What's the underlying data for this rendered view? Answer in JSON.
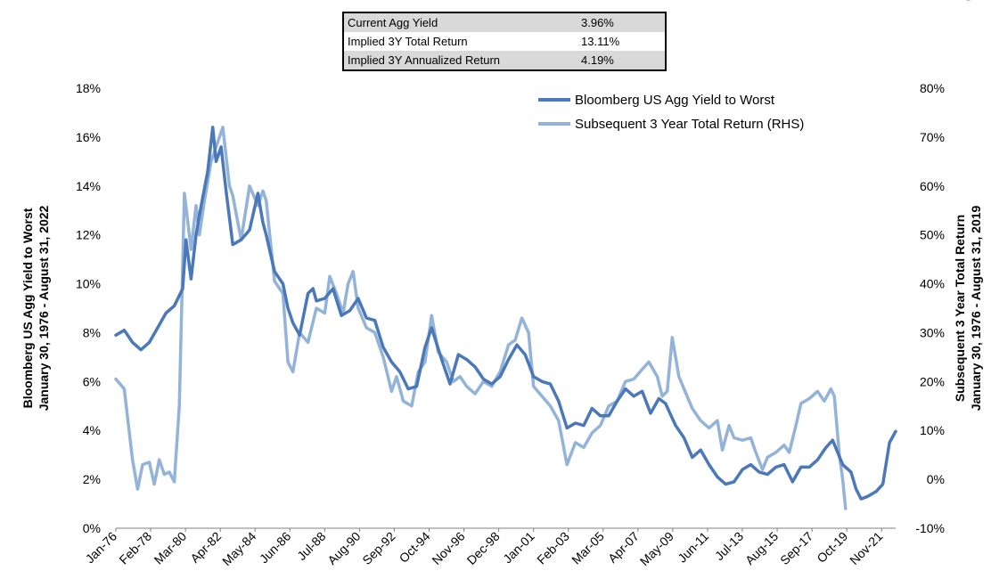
{
  "stats_table": [
    {
      "label": "Current Agg Yield",
      "value": "3.96%"
    },
    {
      "label": "Implied 3Y Total Return",
      "value": "13.11%"
    },
    {
      "label": "Implied 3Y Annualized Return",
      "value": "4.19%"
    }
  ],
  "corner_mark": "\"",
  "chart_data": {
    "type": "line",
    "title": "",
    "ylabel_left": [
      "Bloomberg US Agg Yield to Worst",
      "January 30, 1976 - August 31, 2022"
    ],
    "ylabel_right": [
      "Subsequent 3 Year Total Return",
      "January 30, 1976 - August 31, 2019"
    ],
    "xlabel": "",
    "x_ticks": [
      "Jan-76",
      "Feb-78",
      "Mar-80",
      "Apr-82",
      "May-84",
      "Jun-86",
      "Jul-88",
      "Aug-90",
      "Sep-92",
      "Oct-94",
      "Nov-96",
      "Dec-98",
      "Jan-01",
      "Feb-03",
      "Mar-05",
      "Apr-07",
      "May-09",
      "Jun-11",
      "Jul-13",
      "Aug-15",
      "Sep-17",
      "Oct-19",
      "Nov-21"
    ],
    "ylim_left": [
      0,
      18
    ],
    "ylim_right": [
      -10,
      80
    ],
    "y_ticks_left": [
      "0%",
      "2%",
      "4%",
      "6%",
      "8%",
      "10%",
      "12%",
      "14%",
      "16%",
      "18%"
    ],
    "y_ticks_right": [
      "-10%",
      "0%",
      "10%",
      "20%",
      "30%",
      "40%",
      "50%",
      "60%",
      "70%",
      "80%"
    ],
    "grid": false,
    "legend_position": "top-right",
    "series": [
      {
        "name": "Bloomberg US Agg Yield to Worst",
        "axis": "left",
        "color": "#4a78b8",
        "points": [
          [
            1976.0,
            7.9
          ],
          [
            1976.5,
            8.1
          ],
          [
            1977.0,
            7.6
          ],
          [
            1977.5,
            7.3
          ],
          [
            1978.0,
            7.6
          ],
          [
            1978.5,
            8.2
          ],
          [
            1979.0,
            8.8
          ],
          [
            1979.5,
            9.1
          ],
          [
            1980.0,
            9.8
          ],
          [
            1980.2,
            11.8
          ],
          [
            1980.5,
            10.2
          ],
          [
            1980.8,
            12.0
          ],
          [
            1981.0,
            12.8
          ],
          [
            1981.5,
            14.6
          ],
          [
            1981.8,
            16.4
          ],
          [
            1982.0,
            15.0
          ],
          [
            1982.3,
            15.6
          ],
          [
            1982.6,
            13.8
          ],
          [
            1983.0,
            11.6
          ],
          [
            1983.5,
            11.8
          ],
          [
            1984.0,
            12.2
          ],
          [
            1984.5,
            13.7
          ],
          [
            1984.8,
            12.5
          ],
          [
            1985.0,
            12.0
          ],
          [
            1985.5,
            10.5
          ],
          [
            1986.0,
            10.0
          ],
          [
            1986.3,
            9.0
          ],
          [
            1986.6,
            8.4
          ],
          [
            1987.0,
            7.9
          ],
          [
            1987.5,
            9.6
          ],
          [
            1987.8,
            9.8
          ],
          [
            1988.0,
            9.3
          ],
          [
            1988.5,
            9.4
          ],
          [
            1989.0,
            9.8
          ],
          [
            1989.5,
            8.7
          ],
          [
            1990.0,
            8.9
          ],
          [
            1990.5,
            9.4
          ],
          [
            1991.0,
            8.6
          ],
          [
            1991.5,
            8.5
          ],
          [
            1992.0,
            7.4
          ],
          [
            1992.5,
            6.8
          ],
          [
            1993.0,
            6.4
          ],
          [
            1993.5,
            5.7
          ],
          [
            1994.0,
            5.8
          ],
          [
            1994.5,
            7.4
          ],
          [
            1994.9,
            8.2
          ],
          [
            1995.5,
            6.9
          ],
          [
            1996.0,
            5.9
          ],
          [
            1996.5,
            7.1
          ],
          [
            1997.0,
            6.9
          ],
          [
            1997.5,
            6.6
          ],
          [
            1998.0,
            6.1
          ],
          [
            1998.5,
            5.9
          ],
          [
            1999.0,
            6.2
          ],
          [
            1999.5,
            6.9
          ],
          [
            2000.0,
            7.5
          ],
          [
            2000.5,
            7.1
          ],
          [
            2001.0,
            6.2
          ],
          [
            2001.5,
            6.0
          ],
          [
            2002.0,
            5.9
          ],
          [
            2002.5,
            5.2
          ],
          [
            2003.0,
            4.1
          ],
          [
            2003.5,
            4.3
          ],
          [
            2004.0,
            4.2
          ],
          [
            2004.5,
            4.9
          ],
          [
            2005.0,
            4.6
          ],
          [
            2005.5,
            4.6
          ],
          [
            2006.0,
            5.2
          ],
          [
            2006.5,
            5.7
          ],
          [
            2007.0,
            5.4
          ],
          [
            2007.5,
            5.6
          ],
          [
            2008.0,
            4.7
          ],
          [
            2008.5,
            5.3
          ],
          [
            2008.9,
            5.1
          ],
          [
            2009.5,
            4.2
          ],
          [
            2010.0,
            3.7
          ],
          [
            2010.5,
            2.9
          ],
          [
            2011.0,
            3.2
          ],
          [
            2011.5,
            2.6
          ],
          [
            2012.0,
            2.1
          ],
          [
            2012.5,
            1.8
          ],
          [
            2013.0,
            1.9
          ],
          [
            2013.5,
            2.4
          ],
          [
            2014.0,
            2.6
          ],
          [
            2014.5,
            2.3
          ],
          [
            2015.0,
            2.2
          ],
          [
            2015.5,
            2.5
          ],
          [
            2016.0,
            2.6
          ],
          [
            2016.5,
            1.9
          ],
          [
            2017.0,
            2.5
          ],
          [
            2017.5,
            2.5
          ],
          [
            2018.0,
            2.8
          ],
          [
            2018.5,
            3.3
          ],
          [
            2018.9,
            3.6
          ],
          [
            2019.5,
            2.6
          ],
          [
            2020.0,
            2.3
          ],
          [
            2020.3,
            1.6
          ],
          [
            2020.6,
            1.2
          ],
          [
            2021.0,
            1.3
          ],
          [
            2021.5,
            1.5
          ],
          [
            2021.9,
            1.8
          ],
          [
            2022.3,
            3.5
          ],
          [
            2022.67,
            3.96
          ]
        ]
      },
      {
        "name": "Subsequent 3 Year Total Return (RHS)",
        "axis": "right",
        "color": "#93b3d9",
        "points": [
          [
            1976.0,
            20.5
          ],
          [
            1976.5,
            18.5
          ],
          [
            1977.0,
            4.0
          ],
          [
            1977.3,
            -2.0
          ],
          [
            1977.6,
            3.0
          ],
          [
            1978.0,
            3.5
          ],
          [
            1978.3,
            -1.0
          ],
          [
            1978.6,
            4.0
          ],
          [
            1978.9,
            1.0
          ],
          [
            1979.2,
            1.5
          ],
          [
            1979.5,
            -0.5
          ],
          [
            1979.8,
            15.0
          ],
          [
            1980.1,
            58.5
          ],
          [
            1980.5,
            47.0
          ],
          [
            1980.8,
            56.0
          ],
          [
            1981.0,
            50.0
          ],
          [
            1981.3,
            57.0
          ],
          [
            1981.7,
            65.0
          ],
          [
            1982.0,
            68.0
          ],
          [
            1982.4,
            72.0
          ],
          [
            1982.8,
            60.0
          ],
          [
            1983.0,
            58.0
          ],
          [
            1983.5,
            49.0
          ],
          [
            1984.0,
            60.0
          ],
          [
            1984.5,
            56.0
          ],
          [
            1984.8,
            59.0
          ],
          [
            1985.0,
            57.0
          ],
          [
            1985.5,
            40.5
          ],
          [
            1986.0,
            38.0
          ],
          [
            1986.3,
            24.0
          ],
          [
            1986.6,
            22.0
          ],
          [
            1987.0,
            30.0
          ],
          [
            1987.5,
            28.0
          ],
          [
            1988.0,
            35.0
          ],
          [
            1988.5,
            34.0
          ],
          [
            1988.8,
            41.5
          ],
          [
            1989.2,
            38.0
          ],
          [
            1989.6,
            34.0
          ],
          [
            1989.9,
            40.0
          ],
          [
            1990.2,
            42.5
          ],
          [
            1990.5,
            35.0
          ],
          [
            1991.0,
            31.0
          ],
          [
            1991.5,
            30.0
          ],
          [
            1992.0,
            25.0
          ],
          [
            1992.5,
            18.0
          ],
          [
            1992.8,
            21.0
          ],
          [
            1993.2,
            16.0
          ],
          [
            1993.7,
            15.0
          ],
          [
            1994.1,
            22.0
          ],
          [
            1994.5,
            24.0
          ],
          [
            1994.9,
            33.5
          ],
          [
            1995.3,
            26.0
          ],
          [
            1995.8,
            24.0
          ],
          [
            1996.2,
            20.0
          ],
          [
            1996.6,
            21.0
          ],
          [
            1997.0,
            19.0
          ],
          [
            1997.5,
            17.5
          ],
          [
            1998.0,
            20.0
          ],
          [
            1998.5,
            19.0
          ],
          [
            1999.0,
            22.0
          ],
          [
            1999.5,
            27.5
          ],
          [
            1999.9,
            28.5
          ],
          [
            2000.3,
            33.0
          ],
          [
            2000.7,
            30.0
          ],
          [
            2001.0,
            19.0
          ],
          [
            2001.5,
            17.0
          ],
          [
            2002.0,
            15.0
          ],
          [
            2002.5,
            12.0
          ],
          [
            2003.0,
            3.0
          ],
          [
            2003.5,
            7.5
          ],
          [
            2004.0,
            6.5
          ],
          [
            2004.5,
            9.5
          ],
          [
            2005.0,
            11.0
          ],
          [
            2005.5,
            15.0
          ],
          [
            2006.0,
            16.0
          ],
          [
            2006.5,
            20.0
          ],
          [
            2007.0,
            20.5
          ],
          [
            2007.5,
            22.5
          ],
          [
            2007.9,
            24.0
          ],
          [
            2008.4,
            21.0
          ],
          [
            2008.7,
            17.0
          ],
          [
            2009.0,
            18.0
          ],
          [
            2009.3,
            29.0
          ],
          [
            2009.7,
            21.0
          ],
          [
            2010.0,
            18.5
          ],
          [
            2010.5,
            14.5
          ],
          [
            2011.0,
            12.0
          ],
          [
            2011.5,
            10.5
          ],
          [
            2012.0,
            12.0
          ],
          [
            2012.3,
            6.0
          ],
          [
            2012.7,
            11.0
          ],
          [
            2013.0,
            8.5
          ],
          [
            2013.5,
            8.0
          ],
          [
            2014.0,
            8.5
          ],
          [
            2014.3,
            5.5
          ],
          [
            2014.7,
            2.0
          ],
          [
            2015.0,
            4.5
          ],
          [
            2015.5,
            5.5
          ],
          [
            2016.0,
            7.0
          ],
          [
            2016.3,
            5.5
          ],
          [
            2016.7,
            11.0
          ],
          [
            2017.0,
            15.5
          ],
          [
            2017.5,
            16.5
          ],
          [
            2018.0,
            18.0
          ],
          [
            2018.4,
            16.0
          ],
          [
            2018.8,
            18.5
          ],
          [
            2019.0,
            17.0
          ],
          [
            2019.3,
            5.0
          ],
          [
            2019.5,
            0.0
          ],
          [
            2019.67,
            -6.0
          ]
        ]
      }
    ]
  }
}
